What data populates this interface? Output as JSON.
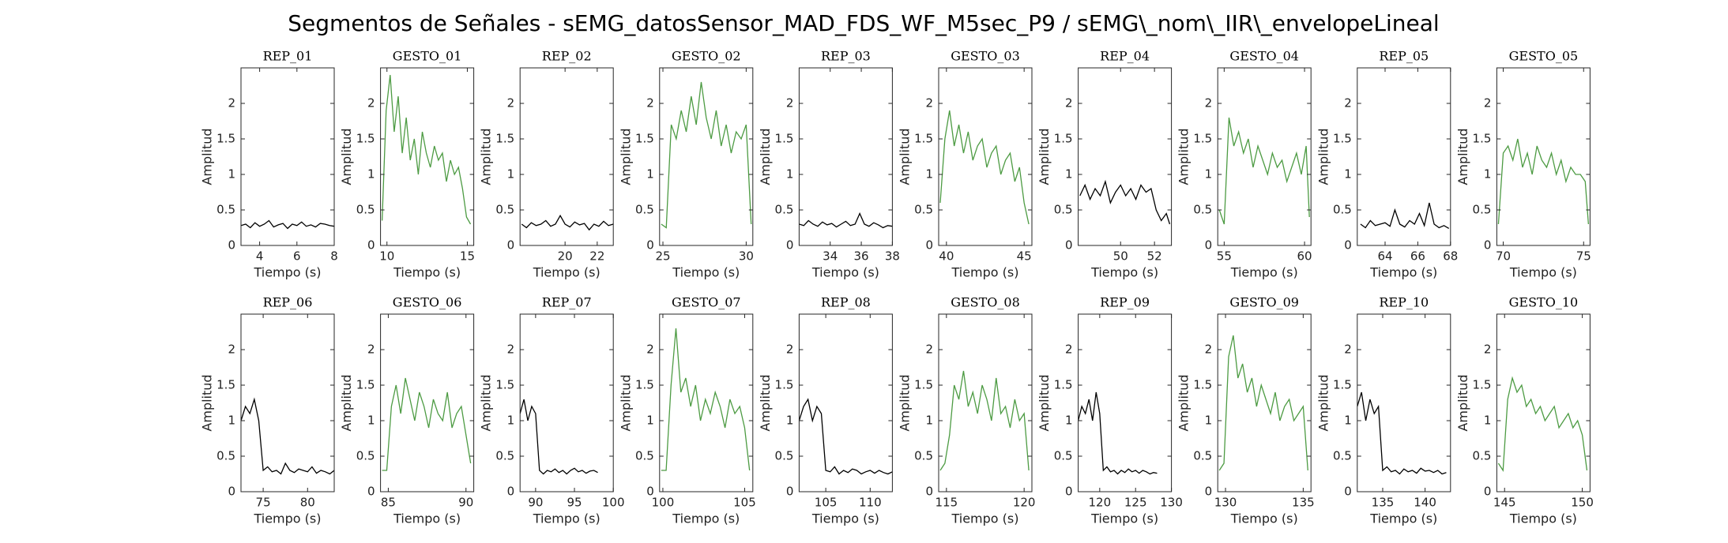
{
  "title": "Segmentos de Señales - sEMG_datosSensor_MAD_FDS_WF_M5sec_P9 / sEMG\\_nom\\_IIR\\_envelopeLineal",
  "chart_data": [
    {
      "type": "line",
      "title": "REP_01",
      "xlabel": "Tiempo (s)",
      "ylabel": "Amplitud",
      "xlim": [
        3,
        8
      ],
      "ylim": [
        0,
        2.5
      ],
      "xticks": [
        4,
        6,
        8
      ],
      "yticks": [
        0,
        0.5,
        1,
        1.5,
        2
      ],
      "color": "#000000",
      "x": [
        3,
        3.25,
        3.5,
        3.75,
        4,
        4.25,
        4.5,
        4.75,
        5,
        5.25,
        5.5,
        5.75,
        6,
        6.25,
        6.5,
        6.75,
        7,
        7.25,
        7.5,
        7.75,
        8
      ],
      "values": [
        0.28,
        0.3,
        0.25,
        0.32,
        0.27,
        0.3,
        0.35,
        0.26,
        0.29,
        0.31,
        0.24,
        0.3,
        0.28,
        0.33,
        0.27,
        0.29,
        0.26,
        0.31,
        0.3,
        0.28,
        0.27
      ]
    },
    {
      "type": "line",
      "title": "GESTO_01",
      "xlabel": "Tiempo (s)",
      "ylabel": "Amplitud",
      "xlim": [
        9.6,
        15.4
      ],
      "ylim": [
        0,
        2.5
      ],
      "xticks": [
        10,
        15
      ],
      "yticks": [
        0,
        0.5,
        1,
        1.5,
        2
      ],
      "color": "#4d9b43",
      "x": [
        9.7,
        9.95,
        10.2,
        10.45,
        10.7,
        10.95,
        11.2,
        11.45,
        11.7,
        11.95,
        12.2,
        12.45,
        12.7,
        12.95,
        13.2,
        13.45,
        13.7,
        13.95,
        14.2,
        14.45,
        14.7,
        14.95,
        15.2
      ],
      "values": [
        0.35,
        1.9,
        2.4,
        1.6,
        2.1,
        1.3,
        1.8,
        1.2,
        1.5,
        1.0,
        1.6,
        1.3,
        1.1,
        1.4,
        1.2,
        1.3,
        0.9,
        1.2,
        1.0,
        1.1,
        0.8,
        0.4,
        0.3
      ]
    },
    {
      "type": "line",
      "title": "REP_02",
      "xlabel": "Tiempo (s)",
      "ylabel": "Amplitud",
      "xlim": [
        17.2,
        23
      ],
      "ylim": [
        0,
        2.5
      ],
      "xticks": [
        20,
        22
      ],
      "yticks": [
        0,
        0.5,
        1,
        1.5,
        2
      ],
      "color": "#000000",
      "x": [
        17.3,
        17.6,
        17.9,
        18.2,
        18.5,
        18.8,
        19.1,
        19.4,
        19.7,
        20,
        20.3,
        20.6,
        20.9,
        21.2,
        21.5,
        21.8,
        22.1,
        22.4,
        22.7,
        23
      ],
      "values": [
        0.3,
        0.25,
        0.32,
        0.28,
        0.3,
        0.35,
        0.27,
        0.3,
        0.42,
        0.3,
        0.26,
        0.33,
        0.29,
        0.31,
        0.22,
        0.3,
        0.27,
        0.34,
        0.28,
        0.3
      ]
    },
    {
      "type": "line",
      "title": "GESTO_02",
      "xlabel": "Tiempo (s)",
      "ylabel": "Amplitud",
      "xlim": [
        24.8,
        30.4
      ],
      "ylim": [
        0,
        2.5
      ],
      "xticks": [
        25,
        30
      ],
      "yticks": [
        0,
        0.5,
        1,
        1.5,
        2
      ],
      "color": "#4d9b43",
      "x": [
        24.9,
        25.2,
        25.5,
        25.8,
        26.1,
        26.4,
        26.7,
        27,
        27.3,
        27.6,
        27.9,
        28.2,
        28.5,
        28.8,
        29.1,
        29.4,
        29.7,
        30,
        30.3
      ],
      "values": [
        0.3,
        0.25,
        1.7,
        1.5,
        1.9,
        1.6,
        2.1,
        1.7,
        2.3,
        1.8,
        1.5,
        1.9,
        1.4,
        1.7,
        1.3,
        1.6,
        1.5,
        1.7,
        0.3
      ]
    },
    {
      "type": "line",
      "title": "REP_03",
      "xlabel": "Tiempo (s)",
      "ylabel": "Amplitud",
      "xlim": [
        32,
        38
      ],
      "ylim": [
        0,
        2.5
      ],
      "xticks": [
        34,
        36,
        38
      ],
      "yticks": [
        0,
        0.5,
        1,
        1.5,
        2
      ],
      "color": "#000000",
      "x": [
        32,
        32.3,
        32.6,
        32.9,
        33.2,
        33.5,
        33.8,
        34.1,
        34.4,
        34.7,
        35,
        35.3,
        35.6,
        35.9,
        36.2,
        36.5,
        36.8,
        37.1,
        37.4,
        37.7,
        38
      ],
      "values": [
        0.3,
        0.28,
        0.35,
        0.3,
        0.27,
        0.33,
        0.29,
        0.31,
        0.26,
        0.3,
        0.34,
        0.28,
        0.3,
        0.45,
        0.3,
        0.27,
        0.32,
        0.29,
        0.25,
        0.28,
        0.27
      ]
    },
    {
      "type": "line",
      "title": "GESTO_03",
      "xlabel": "Tiempo (s)",
      "ylabel": "Amplitud",
      "xlim": [
        39.5,
        45.5
      ],
      "ylim": [
        0,
        2.5
      ],
      "xticks": [
        40,
        45
      ],
      "yticks": [
        0,
        0.5,
        1,
        1.5,
        2
      ],
      "color": "#4d9b43",
      "x": [
        39.6,
        39.9,
        40.2,
        40.5,
        40.8,
        41.1,
        41.4,
        41.7,
        42,
        42.3,
        42.6,
        42.9,
        43.2,
        43.5,
        43.8,
        44.1,
        44.4,
        44.7,
        45,
        45.3
      ],
      "values": [
        0.6,
        1.5,
        1.9,
        1.4,
        1.7,
        1.3,
        1.6,
        1.2,
        1.4,
        1.5,
        1.1,
        1.3,
        1.4,
        1.0,
        1.2,
        1.3,
        0.9,
        1.1,
        0.6,
        0.3
      ]
    },
    {
      "type": "line",
      "title": "REP_04",
      "xlabel": "Tiempo (s)",
      "ylabel": "Amplitud",
      "xlim": [
        47.5,
        53
      ],
      "ylim": [
        0,
        2.5
      ],
      "xticks": [
        50,
        52
      ],
      "yticks": [
        0,
        0.5,
        1,
        1.5,
        2
      ],
      "color": "#000000",
      "x": [
        47.6,
        47.9,
        48.2,
        48.5,
        48.8,
        49.1,
        49.4,
        49.7,
        50,
        50.3,
        50.6,
        50.9,
        51.2,
        51.5,
        51.8,
        52.1,
        52.4,
        52.7,
        52.9
      ],
      "values": [
        0.7,
        0.85,
        0.65,
        0.8,
        0.7,
        0.9,
        0.6,
        0.75,
        0.85,
        0.7,
        0.8,
        0.65,
        0.85,
        0.75,
        0.8,
        0.5,
        0.35,
        0.45,
        0.3
      ]
    },
    {
      "type": "line",
      "title": "GESTO_04",
      "xlabel": "Tiempo (s)",
      "ylabel": "Amplitud",
      "xlim": [
        54.6,
        60.4
      ],
      "ylim": [
        0,
        2.5
      ],
      "xticks": [
        55,
        60
      ],
      "yticks": [
        0,
        0.5,
        1,
        1.5,
        2
      ],
      "color": "#4d9b43",
      "x": [
        54.7,
        55,
        55.3,
        55.6,
        55.9,
        56.2,
        56.5,
        56.8,
        57.1,
        57.4,
        57.7,
        58,
        58.3,
        58.6,
        58.9,
        59.2,
        59.5,
        59.8,
        60.1,
        60.3
      ],
      "values": [
        0.5,
        0.3,
        1.8,
        1.4,
        1.6,
        1.3,
        1.5,
        1.1,
        1.4,
        1.2,
        1.0,
        1.3,
        1.1,
        1.2,
        0.9,
        1.1,
        1.3,
        1.0,
        1.4,
        0.4
      ]
    },
    {
      "type": "line",
      "title": "REP_05",
      "xlabel": "Tiempo (s)",
      "ylabel": "Amplitud",
      "xlim": [
        62.3,
        68
      ],
      "ylim": [
        0,
        2.5
      ],
      "xticks": [
        64,
        66,
        68
      ],
      "yticks": [
        0,
        0.5,
        1,
        1.5,
        2
      ],
      "color": "#000000",
      "x": [
        62.5,
        62.8,
        63.1,
        63.4,
        63.7,
        64,
        64.3,
        64.6,
        64.9,
        65.2,
        65.5,
        65.8,
        66.1,
        66.4,
        66.7,
        67,
        67.3,
        67.6,
        67.9
      ],
      "values": [
        0.3,
        0.25,
        0.35,
        0.28,
        0.3,
        0.32,
        0.27,
        0.5,
        0.3,
        0.26,
        0.35,
        0.3,
        0.45,
        0.28,
        0.6,
        0.3,
        0.25,
        0.28,
        0.24
      ]
    },
    {
      "type": "line",
      "title": "GESTO_05",
      "xlabel": "Tiempo (s)",
      "ylabel": "Amplitud",
      "xlim": [
        69.6,
        75.4
      ],
      "ylim": [
        0,
        2.5
      ],
      "xticks": [
        70,
        75
      ],
      "yticks": [
        0,
        0.5,
        1,
        1.5,
        2
      ],
      "color": "#4d9b43",
      "x": [
        69.7,
        70,
        70.3,
        70.6,
        70.9,
        71.2,
        71.5,
        71.8,
        72.1,
        72.4,
        72.7,
        73,
        73.3,
        73.6,
        73.9,
        74.2,
        74.5,
        74.8,
        75.1,
        75.3
      ],
      "values": [
        0.3,
        1.3,
        1.4,
        1.2,
        1.5,
        1.1,
        1.3,
        1.0,
        1.4,
        1.2,
        1.1,
        1.3,
        1.0,
        1.2,
        0.9,
        1.1,
        1.0,
        1.0,
        0.9,
        0.3
      ]
    },
    {
      "type": "line",
      "title": "REP_06",
      "xlabel": "Tiempo (s)",
      "ylabel": "Amplitud",
      "xlim": [
        72.5,
        83
      ],
      "ylim": [
        0,
        2.5
      ],
      "xticks": [
        75,
        80
      ],
      "yticks": [
        0,
        0.5,
        1,
        1.5,
        2
      ],
      "color": "#000000",
      "x": [
        72.5,
        73,
        73.5,
        74,
        74.5,
        75,
        75.5,
        76,
        76.5,
        77,
        77.5,
        78,
        78.5,
        79,
        79.5,
        80,
        80.5,
        81,
        81.5,
        82,
        82.5,
        83
      ],
      "values": [
        1.0,
        1.2,
        1.1,
        1.3,
        1.0,
        0.3,
        0.35,
        0.28,
        0.3,
        0.25,
        0.4,
        0.3,
        0.27,
        0.32,
        0.3,
        0.28,
        0.35,
        0.26,
        0.3,
        0.28,
        0.25,
        0.3
      ]
    },
    {
      "type": "line",
      "title": "GESTO_06",
      "xlabel": "Tiempo (s)",
      "ylabel": "Amplitud",
      "xlim": [
        84.5,
        90.5
      ],
      "ylim": [
        0,
        2.5
      ],
      "xticks": [
        85,
        90
      ],
      "yticks": [
        0,
        0.5,
        1,
        1.5,
        2
      ],
      "color": "#4d9b43",
      "x": [
        84.6,
        84.9,
        85.2,
        85.5,
        85.8,
        86.1,
        86.4,
        86.7,
        87,
        87.3,
        87.6,
        87.9,
        88.2,
        88.5,
        88.8,
        89.1,
        89.4,
        89.7,
        90,
        90.3
      ],
      "values": [
        0.3,
        0.3,
        1.2,
        1.5,
        1.1,
        1.6,
        1.3,
        1.0,
        1.4,
        1.2,
        0.9,
        1.3,
        1.1,
        1.0,
        1.4,
        0.9,
        1.1,
        1.2,
        0.8,
        0.4
      ]
    },
    {
      "type": "line",
      "title": "REP_07",
      "xlabel": "Tiempo (s)",
      "ylabel": "Amplitud",
      "xlim": [
        88,
        100
      ],
      "ylim": [
        0,
        2.5
      ],
      "xticks": [
        90,
        95,
        100
      ],
      "yticks": [
        0,
        0.5,
        1,
        1.5,
        2
      ],
      "color": "#000000",
      "x": [
        88,
        88.5,
        89,
        89.5,
        90,
        90.5,
        91,
        91.5,
        92,
        92.5,
        93,
        93.5,
        94,
        94.5,
        95,
        95.5,
        96,
        96.5,
        97,
        97.5,
        98
      ],
      "values": [
        1.1,
        1.3,
        1.0,
        1.2,
        1.1,
        0.3,
        0.25,
        0.3,
        0.28,
        0.32,
        0.27,
        0.3,
        0.25,
        0.3,
        0.33,
        0.28,
        0.3,
        0.26,
        0.29,
        0.3,
        0.27
      ]
    },
    {
      "type": "line",
      "title": "GESTO_07",
      "xlabel": "Tiempo (s)",
      "ylabel": "Amplitud",
      "xlim": [
        99.8,
        105.5
      ],
      "ylim": [
        0,
        2.5
      ],
      "xticks": [
        100,
        105
      ],
      "yticks": [
        0,
        0.5,
        1,
        1.5,
        2
      ],
      "color": "#4d9b43",
      "x": [
        99.9,
        100.2,
        100.5,
        100.8,
        101.1,
        101.4,
        101.7,
        102,
        102.3,
        102.6,
        102.9,
        103.2,
        103.5,
        103.8,
        104.1,
        104.4,
        104.7,
        105,
        105.3
      ],
      "values": [
        0.3,
        0.3,
        1.5,
        2.3,
        1.4,
        1.6,
        1.2,
        1.5,
        1.0,
        1.3,
        1.1,
        1.4,
        1.2,
        0.9,
        1.3,
        1.1,
        1.2,
        0.9,
        0.3
      ]
    },
    {
      "type": "line",
      "title": "REP_08",
      "xlabel": "Tiempo (s)",
      "ylabel": "Amplitud",
      "xlim": [
        102,
        112.5
      ],
      "ylim": [
        0,
        2.5
      ],
      "xticks": [
        105,
        110
      ],
      "yticks": [
        0,
        0.5,
        1,
        1.5,
        2
      ],
      "color": "#000000",
      "x": [
        102,
        102.5,
        103,
        103.5,
        104,
        104.5,
        105,
        105.5,
        106,
        106.5,
        107,
        107.5,
        108,
        108.5,
        109,
        109.5,
        110,
        110.5,
        111,
        111.5,
        112,
        112.5
      ],
      "values": [
        1.0,
        1.2,
        1.3,
        1.0,
        1.2,
        1.1,
        0.3,
        0.28,
        0.35,
        0.25,
        0.3,
        0.27,
        0.32,
        0.3,
        0.25,
        0.28,
        0.3,
        0.26,
        0.3,
        0.27,
        0.25,
        0.28
      ]
    },
    {
      "type": "line",
      "title": "GESTO_08",
      "xlabel": "Tiempo (s)",
      "ylabel": "Amplitud",
      "xlim": [
        114.5,
        120.5
      ],
      "ylim": [
        0,
        2.5
      ],
      "xticks": [
        115,
        120
      ],
      "yticks": [
        0,
        0.5,
        1,
        1.5,
        2
      ],
      "color": "#4d9b43",
      "x": [
        114.6,
        114.9,
        115.2,
        115.5,
        115.8,
        116.1,
        116.4,
        116.7,
        117,
        117.3,
        117.6,
        117.9,
        118.2,
        118.5,
        118.8,
        119.1,
        119.4,
        119.7,
        120,
        120.3
      ],
      "values": [
        0.3,
        0.4,
        0.8,
        1.5,
        1.3,
        1.7,
        1.2,
        1.4,
        1.1,
        1.5,
        1.3,
        1.0,
        1.6,
        1.1,
        1.2,
        0.9,
        1.3,
        1.0,
        1.1,
        0.3
      ]
    },
    {
      "type": "line",
      "title": "REP_09",
      "xlabel": "Tiempo (s)",
      "ylabel": "Amplitud",
      "xlim": [
        117,
        130
      ],
      "ylim": [
        0,
        2.5
      ],
      "xticks": [
        120,
        125,
        130
      ],
      "yticks": [
        0,
        0.5,
        1,
        1.5,
        2
      ],
      "color": "#000000",
      "x": [
        117,
        117.5,
        118,
        118.5,
        119,
        119.5,
        120,
        120.5,
        121,
        121.5,
        122,
        122.5,
        123,
        123.5,
        124,
        124.5,
        125,
        125.5,
        126,
        126.5,
        127,
        127.5,
        128
      ],
      "values": [
        1.0,
        1.2,
        1.1,
        1.3,
        1.0,
        1.4,
        1.1,
        0.3,
        0.35,
        0.28,
        0.3,
        0.25,
        0.3,
        0.27,
        0.32,
        0.28,
        0.3,
        0.26,
        0.3,
        0.28,
        0.25,
        0.27,
        0.26
      ]
    },
    {
      "type": "line",
      "title": "GESTO_09",
      "xlabel": "Tiempo (s)",
      "ylabel": "Amplitud",
      "xlim": [
        129.5,
        135.5
      ],
      "ylim": [
        0,
        2.5
      ],
      "xticks": [
        130,
        135
      ],
      "yticks": [
        0,
        0.5,
        1,
        1.5,
        2
      ],
      "color": "#4d9b43",
      "x": [
        129.6,
        129.9,
        130.2,
        130.5,
        130.8,
        131.1,
        131.4,
        131.7,
        132,
        132.3,
        132.6,
        132.9,
        133.2,
        133.5,
        133.8,
        134.1,
        134.4,
        134.7,
        135,
        135.3
      ],
      "values": [
        0.3,
        0.4,
        1.9,
        2.2,
        1.6,
        1.8,
        1.4,
        1.6,
        1.2,
        1.5,
        1.3,
        1.1,
        1.4,
        1.0,
        1.2,
        1.3,
        1.0,
        1.1,
        1.2,
        0.3
      ]
    },
    {
      "type": "line",
      "title": "REP_10",
      "xlabel": "Tiempo (s)",
      "ylabel": "Amplitud",
      "xlim": [
        132,
        143
      ],
      "ylim": [
        0,
        2.5
      ],
      "xticks": [
        135,
        140
      ],
      "yticks": [
        0,
        0.5,
        1,
        1.5,
        2
      ],
      "color": "#000000",
      "x": [
        132,
        132.5,
        133,
        133.5,
        134,
        134.5,
        135,
        135.5,
        136,
        136.5,
        137,
        137.5,
        138,
        138.5,
        139,
        139.5,
        140,
        140.5,
        141,
        141.5,
        142,
        142.5
      ],
      "values": [
        1.2,
        1.4,
        1.0,
        1.3,
        1.1,
        1.2,
        0.3,
        0.35,
        0.28,
        0.3,
        0.25,
        0.32,
        0.28,
        0.3,
        0.26,
        0.33,
        0.29,
        0.3,
        0.27,
        0.3,
        0.25,
        0.27
      ]
    },
    {
      "type": "line",
      "title": "GESTO_10",
      "xlabel": "Tiempo (s)",
      "ylabel": "Amplitud",
      "xlim": [
        144.5,
        150.5
      ],
      "ylim": [
        0,
        2.5
      ],
      "xticks": [
        145,
        150
      ],
      "yticks": [
        0,
        0.5,
        1,
        1.5,
        2
      ],
      "color": "#4d9b43",
      "x": [
        144.6,
        144.9,
        145.2,
        145.5,
        145.8,
        146.1,
        146.4,
        146.7,
        147,
        147.3,
        147.6,
        147.9,
        148.2,
        148.5,
        148.8,
        149.1,
        149.4,
        149.7,
        150,
        150.3
      ],
      "values": [
        0.4,
        0.3,
        1.3,
        1.6,
        1.4,
        1.5,
        1.2,
        1.3,
        1.1,
        1.2,
        1.0,
        1.1,
        1.2,
        0.9,
        1.0,
        1.1,
        0.9,
        1.0,
        0.8,
        0.3
      ]
    }
  ]
}
